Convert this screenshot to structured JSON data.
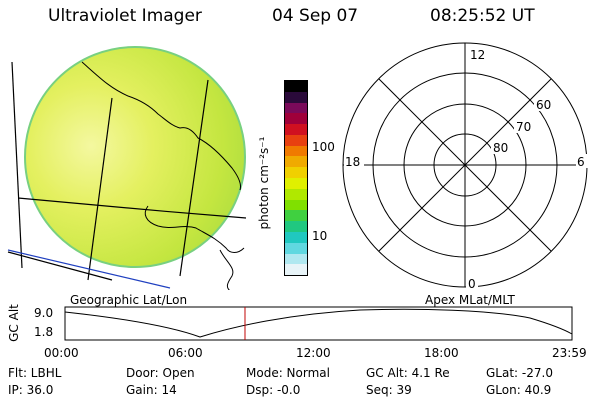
{
  "header": {
    "instrument": "Ultraviolet Imager",
    "date": "04 Sep 07",
    "time": "08:25:52 UT"
  },
  "geo_panel": {
    "label": "Geographic Lat/Lon"
  },
  "apex_panel": {
    "label": "Apex MLat/MLT",
    "mlt_labels": [
      "12",
      "18",
      "6",
      "0"
    ],
    "mlat_labels": [
      "60",
      "70",
      "80"
    ]
  },
  "colorbar": {
    "unit_label": "photon cm⁻²s⁻¹",
    "tick_labels": [
      "100",
      "10"
    ],
    "colors": [
      "#000000",
      "#2a0a3a",
      "#7a0a5a",
      "#a0003a",
      "#d01020",
      "#e84010",
      "#f07a00",
      "#f0aa00",
      "#f0d000",
      "#e0f000",
      "#b0e800",
      "#80e000",
      "#40d040",
      "#20c880",
      "#20c8c0",
      "#60d8e0",
      "#b0e8f0",
      "#e8f4f8"
    ]
  },
  "altitude_plot": {
    "y_axis_title": "GC Alt",
    "y_ticks": [
      "9.0",
      "1.8"
    ],
    "x_ticks": [
      "00:00",
      "06:00",
      "12:00",
      "18:00",
      "23:59"
    ],
    "current_time_fraction": 0.355
  },
  "status": {
    "filter": "Flt: LBHL",
    "ip": "IP: 36.0",
    "door": "Door: Open",
    "gain": "Gain: 14",
    "mode": "Mode: Normal",
    "dsp": "Dsp:   -0.0",
    "gc_alt": "GC Alt: 4.1 Re",
    "seq": "Seq: 39",
    "glat": "GLat: -27.0",
    "glon": "GLon:  40.9"
  }
}
